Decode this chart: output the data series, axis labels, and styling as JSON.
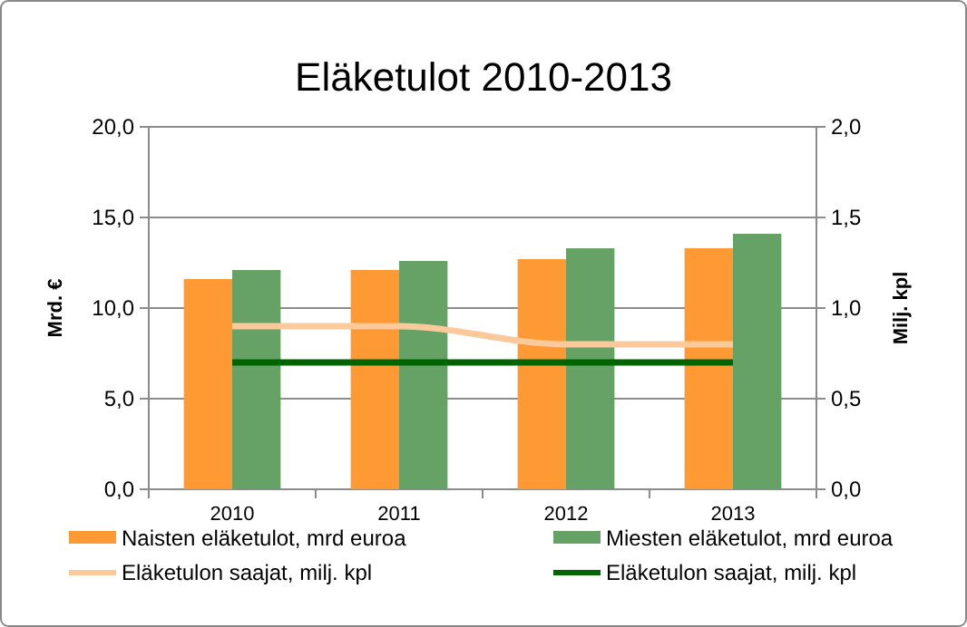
{
  "chart_data": {
    "type": "bar",
    "title": "Eläketulot 2010-2013",
    "ylabel": "Mrd. €",
    "y2label": "Milj. kpl",
    "categories": [
      "2010",
      "2011",
      "2012",
      "2013"
    ],
    "series": [
      {
        "name": "Naisten eläketulot, mrd  euroa",
        "color": "#ff9933",
        "values": [
          11.6,
          12.1,
          12.7,
          13.3
        ]
      },
      {
        "name": "Miesten eläketulot, mrd  euroa",
        "color": "#66a266",
        "values": [
          12.1,
          12.6,
          13.3,
          14.1
        ]
      },
      {
        "name": "Eläketulon saajat, milj. kpl",
        "type": "line",
        "axis": "y2",
        "color": "#fcc99a",
        "values": [
          0.9,
          0.9,
          0.8,
          0.8
        ]
      },
      {
        "name": "Eläketulon saajat, milj. kpl",
        "type": "line",
        "axis": "y2",
        "color": "#006400",
        "values": [
          0.7,
          0.7,
          0.7,
          0.7
        ]
      }
    ],
    "ylim": [
      0,
      20
    ],
    "yticks": [
      {
        "value": 0,
        "label": "0,0"
      },
      {
        "value": 5,
        "label": "5,0"
      },
      {
        "value": 10,
        "label": "10,0"
      },
      {
        "value": 15,
        "label": "15,0"
      },
      {
        "value": 20,
        "label": "20,0"
      }
    ],
    "y2lim": [
      0,
      2
    ],
    "y2ticks": [
      {
        "value": 0,
        "label": "0,0"
      },
      {
        "value": 0.5,
        "label": "0,5"
      },
      {
        "value": 1,
        "label": "1,0"
      },
      {
        "value": 1.5,
        "label": "1,5"
      },
      {
        "value": 2,
        "label": "2,0"
      }
    ],
    "grid": "y",
    "legend": "bottom"
  }
}
